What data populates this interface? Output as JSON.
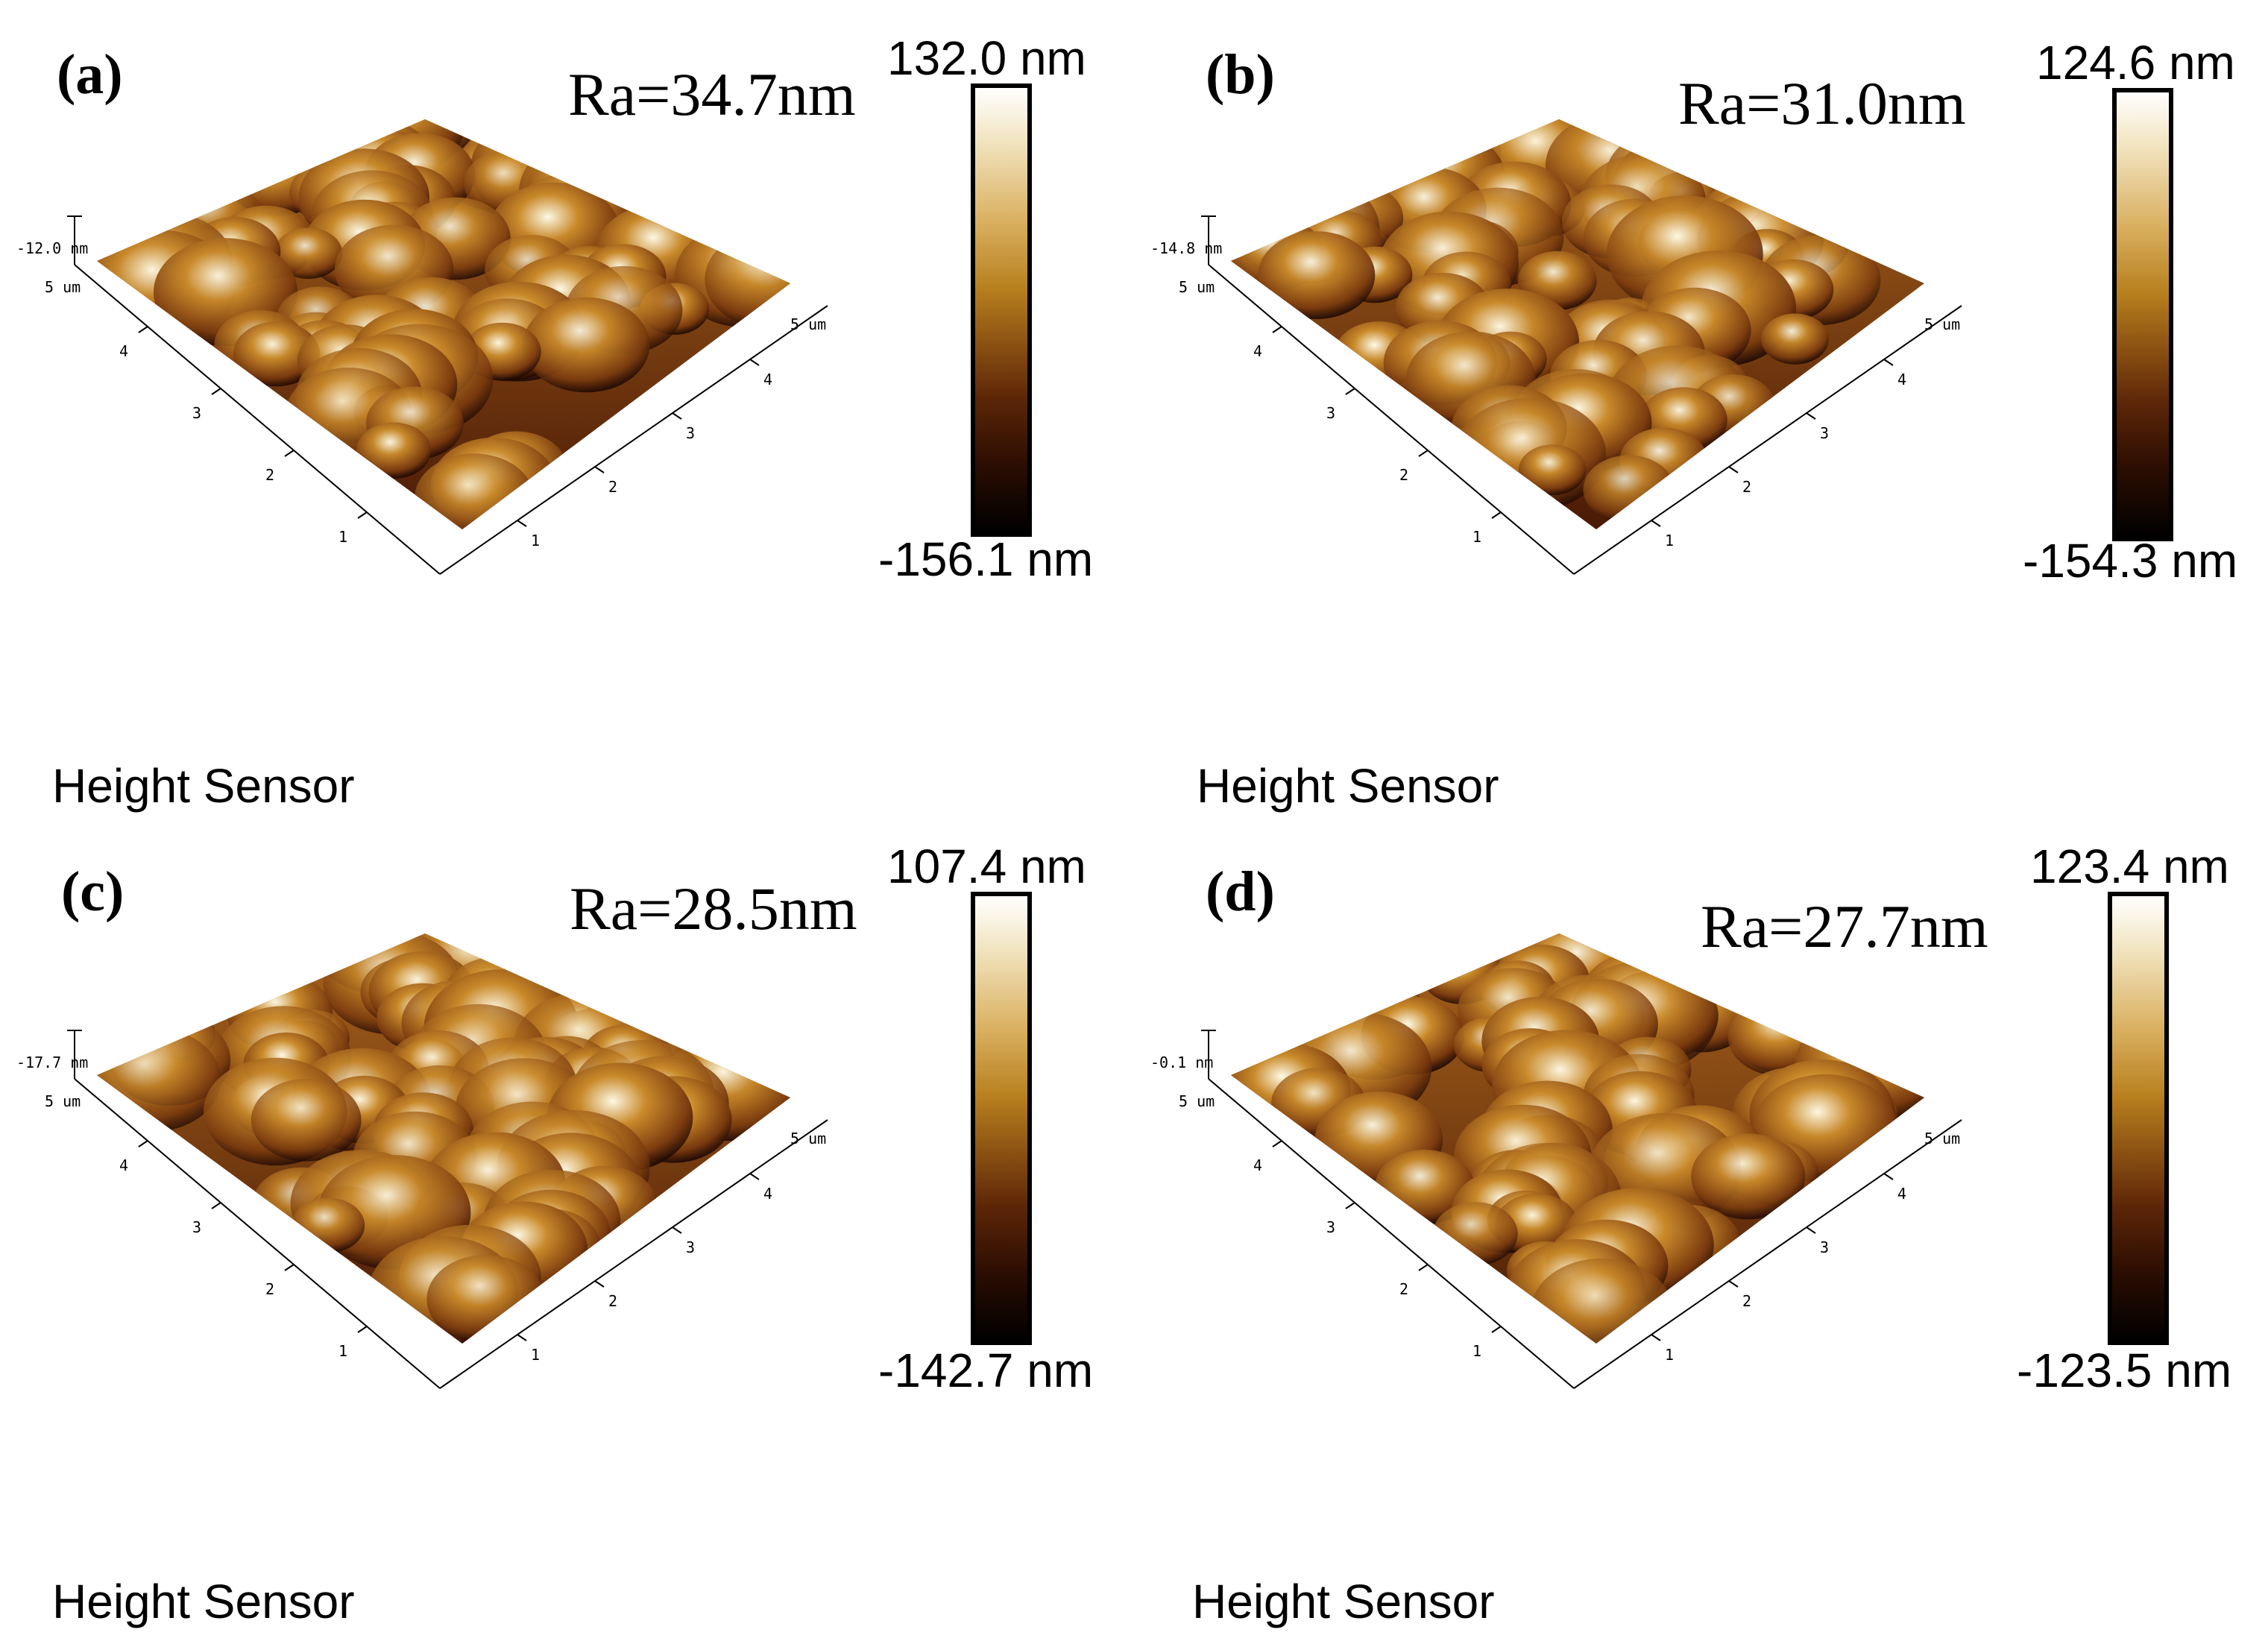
{
  "panels": [
    {
      "letter": "(a)",
      "ra": "Ra=34.7nm",
      "cb_max": "132.0 nm",
      "cb_min": "-156.1 nm",
      "z_label": "-12.0 nm",
      "footer": "Height Sensor"
    },
    {
      "letter": "(b)",
      "ra": "Ra=31.0nm",
      "cb_max": "124.6 nm",
      "cb_min": "-154.3 nm",
      "z_label": "-14.8 nm",
      "footer": "Height Sensor"
    },
    {
      "letter": "(c)",
      "ra": "Ra=28.5nm",
      "cb_max": "107.4 nm",
      "cb_min": "-142.7 nm",
      "z_label": "-17.7 nm",
      "footer": "Height Sensor"
    },
    {
      "letter": "(d)",
      "ra": "Ra=27.7nm",
      "cb_max": "123.4 nm",
      "cb_min": "-123.5 nm",
      "z_label": "-0.1 nm",
      "footer": "Height Sensor"
    }
  ],
  "axis": {
    "unit_label": "5 um",
    "ticks": [
      "1",
      "2",
      "3",
      "4"
    ]
  },
  "colors": {
    "highlight": "#fffbe8",
    "gold": "#c98a2a",
    "brown": "#7a3a0e",
    "dark": "#1a0603"
  }
}
